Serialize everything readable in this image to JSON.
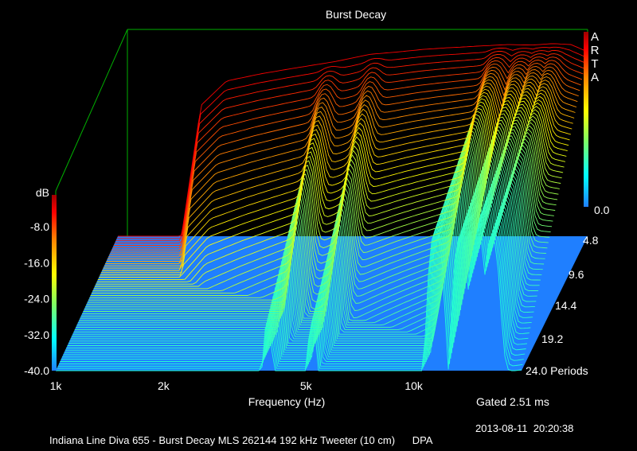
{
  "chart_data": {
    "type": "waterfall-3d",
    "title": "Burst Decay",
    "brand": "ARTA",
    "xlabel": "Frequency (Hz)",
    "zlabel": "dB",
    "x_scale": "log",
    "x_range": [
      1000,
      20000
    ],
    "x_ticks": [
      {
        "label": "1k",
        "value": 1000
      },
      {
        "label": "2k",
        "value": 2000
      },
      {
        "label": "5k",
        "value": 5000
      },
      {
        "label": "10k",
        "value": 10000
      }
    ],
    "z_range": [
      -40,
      0
    ],
    "z_ticks": [
      "-8.0",
      "-16.0",
      "-24.0",
      "-32.0",
      "-40.0"
    ],
    "period_ticks": [
      "0.0",
      "4.8",
      "9.6",
      "14.4",
      "19.2",
      "24.0 Periods"
    ],
    "period_range": [
      0,
      24
    ],
    "gate_label": "Gated 2.51 ms",
    "timestamp": "2013-08-11  20:20:38",
    "footer": "Indiana Line Diva 655 - Burst Decay MLS 262144 192 kHz Tweeter (10 cm)      DPA",
    "front_response": {
      "freq": [
        1000,
        1500,
        1700,
        2000,
        2500,
        3000,
        4000,
        5000,
        6000,
        7000,
        8000,
        9000,
        10000,
        12000,
        14000,
        16000,
        18000,
        20000
      ],
      "db": [
        -40,
        -40,
        -13,
        -8,
        -6.5,
        -5.5,
        -4,
        -2.5,
        -2,
        -1.5,
        -1.2,
        -1,
        -0.8,
        -0.5,
        -0.6,
        -0.3,
        -0.5,
        -2
      ]
    },
    "colors": {
      "background": "#000000",
      "floor": "#1f7fff",
      "frame": "#00b000",
      "text": "#ffffff",
      "colormap": [
        "#1f7fff",
        "#00ffff",
        "#80ff60",
        "#ffff00",
        "#ff8000",
        "#ff0000",
        "#a00000"
      ]
    }
  }
}
